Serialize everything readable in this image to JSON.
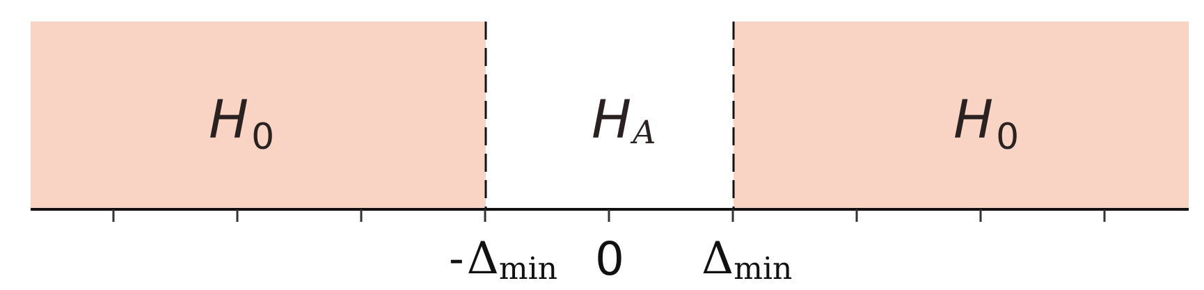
{
  "colors": {
    "null_region": "#f9d4c4",
    "alt_region": "#ffffff",
    "axis": "#111111",
    "tick": "#333333",
    "boundary": "#111111"
  },
  "regions": {
    "left": {
      "hypothesis": "H",
      "subscript": "0"
    },
    "center": {
      "hypothesis": "H",
      "subscript": "A"
    },
    "right": {
      "hypothesis": "H",
      "subscript": "0"
    }
  },
  "tick_labels": {
    "neg_prefix": "-",
    "neg_symbol": "Δ",
    "neg_subscript": "min",
    "zero": "0",
    "pos_symbol": "Δ",
    "pos_subscript": "min"
  },
  "boundary_style": "dashed",
  "tick_count": 9
}
